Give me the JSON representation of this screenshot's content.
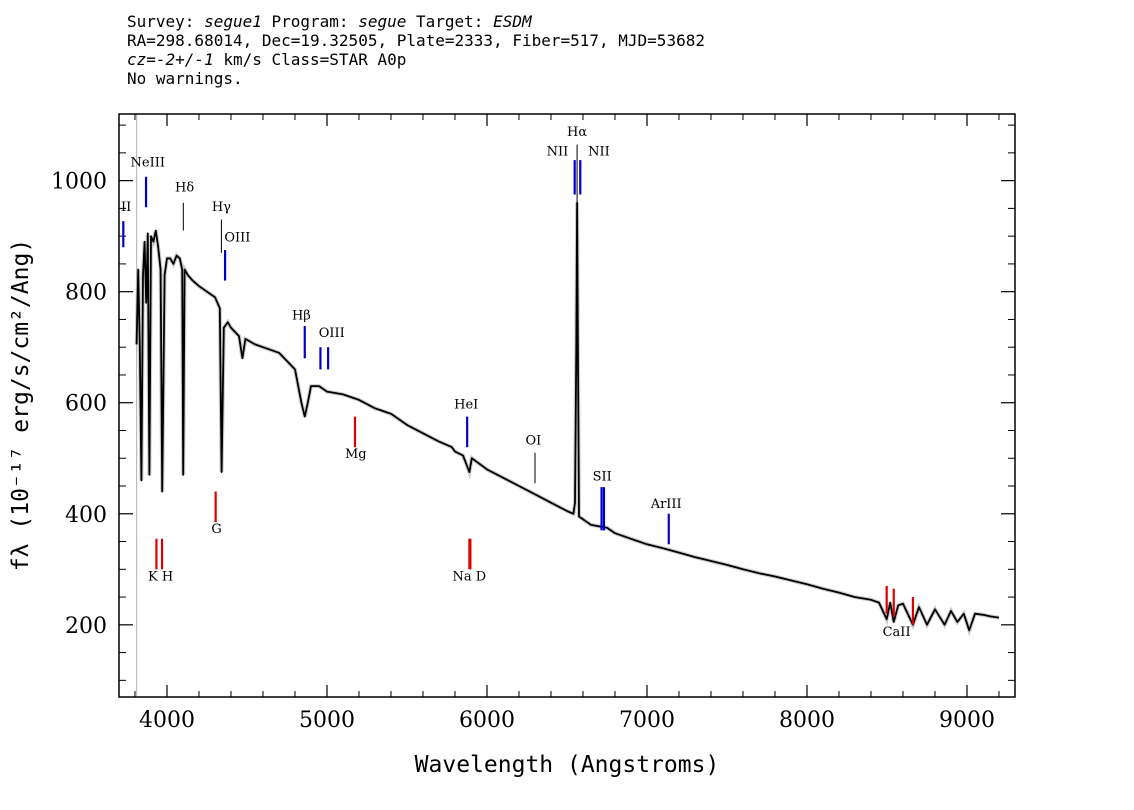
{
  "header": {
    "line1": {
      "survey_label": "Survey: ",
      "survey": "segue1",
      "program_label": " Program: ",
      "program": "segue",
      "target_label": " Target: ",
      "target": "ESDM"
    },
    "line2": "RA=298.68014, Dec=19.32505, Plate=2333, Fiber=517, MJD=53682",
    "line3": {
      "cz_label": "cz",
      "cz_rest": "=-2+/-1",
      "unit_text": " km/s Class=STAR A0p"
    },
    "line4": "No warnings."
  },
  "chart_data": {
    "type": "line",
    "xlabel": "Wavelength (Angstroms)",
    "ylabel": "fλ (10⁻¹⁷ erg/s/cm²/Ang)",
    "xlim": [
      3700,
      9300
    ],
    "ylim": [
      70,
      1120
    ],
    "x_ticks": [
      4000,
      5000,
      6000,
      7000,
      8000,
      9000
    ],
    "y_ticks": [
      200,
      400,
      600,
      800,
      1000
    ],
    "grid": false,
    "series": [
      {
        "color": "#000000",
        "points": [
          [
            3810,
            705
          ],
          [
            3820,
            840
          ],
          [
            3830,
            700
          ],
          [
            3840,
            460
          ],
          [
            3850,
            830
          ],
          [
            3860,
            890
          ],
          [
            3870,
            780
          ],
          [
            3880,
            905
          ],
          [
            3890,
            470
          ],
          [
            3900,
            900
          ],
          [
            3915,
            890
          ],
          [
            3930,
            910
          ],
          [
            3945,
            880
          ],
          [
            3960,
            840
          ],
          [
            3970,
            440
          ],
          [
            3985,
            830
          ],
          [
            4000,
            860
          ],
          [
            4020,
            860
          ],
          [
            4040,
            850
          ],
          [
            4060,
            865
          ],
          [
            4080,
            860
          ],
          [
            4095,
            840
          ],
          [
            4101,
            470
          ],
          [
            4110,
            840
          ],
          [
            4130,
            830
          ],
          [
            4160,
            820
          ],
          [
            4200,
            810
          ],
          [
            4250,
            800
          ],
          [
            4300,
            790
          ],
          [
            4330,
            770
          ],
          [
            4341,
            475
          ],
          [
            4355,
            735
          ],
          [
            4380,
            745
          ],
          [
            4400,
            735
          ],
          [
            4450,
            720
          ],
          [
            4471,
            680
          ],
          [
            4490,
            715
          ],
          [
            4550,
            705
          ],
          [
            4600,
            700
          ],
          [
            4700,
            690
          ],
          [
            4800,
            660
          ],
          [
            4840,
            600
          ],
          [
            4861,
            575
          ],
          [
            4880,
            600
          ],
          [
            4900,
            630
          ],
          [
            4950,
            630
          ],
          [
            5000,
            620
          ],
          [
            5100,
            615
          ],
          [
            5200,
            605
          ],
          [
            5300,
            590
          ],
          [
            5400,
            580
          ],
          [
            5500,
            560
          ],
          [
            5600,
            545
          ],
          [
            5700,
            530
          ],
          [
            5780,
            520
          ],
          [
            5800,
            512
          ],
          [
            5850,
            505
          ],
          [
            5890,
            475
          ],
          [
            5905,
            500
          ],
          [
            6000,
            480
          ],
          [
            6100,
            465
          ],
          [
            6200,
            450
          ],
          [
            6300,
            435
          ],
          [
            6400,
            420
          ],
          [
            6500,
            405
          ],
          [
            6540,
            400
          ],
          [
            6550,
            420
          ],
          [
            6558,
            700
          ],
          [
            6563,
            960
          ],
          [
            6568,
            700
          ],
          [
            6575,
            395
          ],
          [
            6650,
            380
          ],
          [
            6750,
            375
          ],
          [
            6800,
            365
          ],
          [
            6900,
            355
          ],
          [
            7000,
            345
          ],
          [
            7100,
            338
          ],
          [
            7200,
            330
          ],
          [
            7300,
            322
          ],
          [
            7400,
            315
          ],
          [
            7500,
            308
          ],
          [
            7600,
            300
          ],
          [
            7700,
            293
          ],
          [
            7800,
            287
          ],
          [
            7900,
            280
          ],
          [
            8000,
            273
          ],
          [
            8100,
            265
          ],
          [
            8200,
            258
          ],
          [
            8300,
            250
          ],
          [
            8400,
            245
          ],
          [
            8450,
            240
          ],
          [
            8498,
            210
          ],
          [
            8520,
            240
          ],
          [
            8542,
            205
          ],
          [
            8570,
            235
          ],
          [
            8600,
            238
          ],
          [
            8662,
            200
          ],
          [
            8700,
            232
          ],
          [
            8750,
            200
          ],
          [
            8800,
            228
          ],
          [
            8860,
            200
          ],
          [
            8900,
            225
          ],
          [
            8940,
            205
          ],
          [
            8980,
            220
          ],
          [
            9014,
            190
          ],
          [
            9050,
            220
          ],
          [
            9100,
            218
          ],
          [
            9150,
            215
          ],
          [
            9200,
            213
          ]
        ]
      }
    ],
    "emission_lines": [
      {
        "label": "NeIII",
        "wavelength": 3869,
        "y_bottom": 952,
        "y_top": 1007,
        "color": "#0000cc"
      },
      {
        "label": "OII",
        "wavelength": 3727,
        "y_bottom": 880,
        "y_top": 927,
        "color": "#0000cc"
      },
      {
        "label": "OIII",
        "wavelength": 4363,
        "y_bottom": 820,
        "y_top": 875,
        "color": "#0000cc"
      },
      {
        "label": "OIII",
        "wavelength": 4959,
        "y_bottom": 660,
        "y_top": 700,
        "color": "#0000cc"
      },
      {
        "label": "OIII",
        "wavelength": 5007,
        "y_bottom": 660,
        "y_top": 700,
        "color": "#0000cc"
      },
      {
        "label": "Hβ",
        "wavelength": 4861,
        "y_bottom": 680,
        "y_top": 738,
        "color": "#0000cc"
      },
      {
        "label": "HeI",
        "wavelength": 5876,
        "y_bottom": 520,
        "y_top": 575,
        "color": "#0000cc"
      },
      {
        "label": "NII",
        "wavelength": 6548,
        "y_bottom": 975,
        "y_top": 1037,
        "color": "#0000cc"
      },
      {
        "label": "NII",
        "wavelength": 6583,
        "y_bottom": 975,
        "y_top": 1037,
        "color": "#0000cc"
      },
      {
        "label": "SII",
        "wavelength": 6716,
        "y_bottom": 370,
        "y_top": 448,
        "color": "#0000cc"
      },
      {
        "label": "SII",
        "wavelength": 6731,
        "y_bottom": 370,
        "y_top": 448,
        "color": "#0000cc"
      },
      {
        "label": "ArIII",
        "wavelength": 7136,
        "y_bottom": 345,
        "y_top": 400,
        "color": "#0000cc"
      }
    ],
    "balmer_lines": [
      {
        "label": "Hδ",
        "wavelength": 4102,
        "y_bottom": 910,
        "y_top": 960,
        "color": "#000000"
      },
      {
        "label": "Hγ",
        "wavelength": 4340,
        "y_bottom": 870,
        "y_top": 930,
        "color": "#000000"
      },
      {
        "label": "Hα",
        "wavelength": 6563,
        "y_bottom": 960,
        "y_top": 1065,
        "color": "#000000"
      },
      {
        "label": "OI",
        "wavelength": 6300,
        "y_bottom": 455,
        "y_top": 510,
        "color": "#000000"
      }
    ],
    "absorption_lines": [
      {
        "label": "K",
        "wavelength": 3934,
        "y_bottom": 300,
        "y_top": 355,
        "color": "#dd0000"
      },
      {
        "label": "H",
        "wavelength": 3969,
        "y_bottom": 300,
        "y_top": 355,
        "color": "#dd0000"
      },
      {
        "label": "G",
        "wavelength": 4304,
        "y_bottom": 385,
        "y_top": 440,
        "color": "#dd0000"
      },
      {
        "label": "Mg",
        "wavelength": 5175,
        "y_bottom": 520,
        "y_top": 575,
        "color": "#dd0000"
      },
      {
        "label": "Na",
        "wavelength": 5890,
        "y_bottom": 300,
        "y_top": 355,
        "color": "#dd0000"
      },
      {
        "label": "D",
        "wavelength": 5896,
        "y_bottom": 300,
        "y_top": 355,
        "color": "#dd0000"
      },
      {
        "label": "CaII",
        "wavelength": 8498,
        "y_bottom": 220,
        "y_top": 270,
        "color": "#dd0000"
      },
      {
        "label": "CaII",
        "wavelength": 8542,
        "y_bottom": 215,
        "y_top": 265,
        "color": "#dd0000"
      },
      {
        "label": "CaII",
        "wavelength": 8662,
        "y_bottom": 200,
        "y_top": 250,
        "color": "#dd0000"
      }
    ],
    "line_labels": [
      {
        "text": "NeIII",
        "x": 3880,
        "y": 1025
      },
      {
        "text": "II",
        "x": 3745,
        "y": 945
      },
      {
        "text": "Hδ",
        "x": 4110,
        "y": 980
      },
      {
        "text": "Hγ",
        "x": 4340,
        "y": 945
      },
      {
        "text": "OIII",
        "x": 4440,
        "y": 890
      },
      {
        "text": "Hβ",
        "x": 4840,
        "y": 750
      },
      {
        "text": "OIII",
        "x": 5030,
        "y": 718
      },
      {
        "text": "HeI",
        "x": 5870,
        "y": 590
      },
      {
        "text": "Mg",
        "x": 5180,
        "y": 500
      },
      {
        "text": "OI",
        "x": 6290,
        "y": 525
      },
      {
        "text": "Hα",
        "x": 6563,
        "y": 1080
      },
      {
        "text": "NII",
        "x": 6440,
        "y": 1045
      },
      {
        "text": "NII",
        "x": 6700,
        "y": 1045
      },
      {
        "text": "SII",
        "x": 6720,
        "y": 460
      },
      {
        "text": "ArIII",
        "x": 7120,
        "y": 410
      },
      {
        "text": "K H",
        "x": 3960,
        "y": 280
      },
      {
        "text": "G",
        "x": 4310,
        "y": 365
      },
      {
        "text": "Na  D",
        "x": 5890,
        "y": 280
      },
      {
        "text": "CaII",
        "x": 8560,
        "y": 180
      }
    ],
    "fiber_edge": 3810
  }
}
